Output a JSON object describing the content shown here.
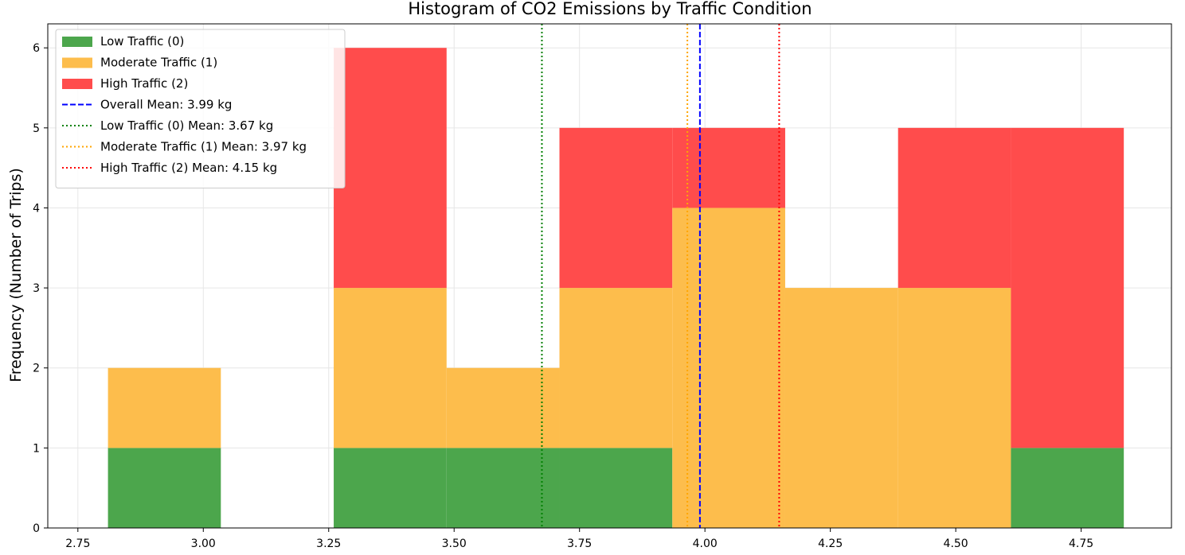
{
  "chart_data": {
    "type": "bar",
    "stacked": true,
    "title": "Histogram of CO2 Emissions by Traffic Condition",
    "xlabel": "",
    "ylabel": "Frequency (Number of Trips)",
    "xlim": [
      2.69,
      4.93
    ],
    "ylim": [
      0,
      6.3
    ],
    "xticks": [
      2.75,
      3.0,
      3.25,
      3.5,
      3.75,
      4.0,
      4.25,
      4.5,
      4.75
    ],
    "xtick_labels": [
      "2.75",
      "3.00",
      "3.25",
      "3.50",
      "3.75",
      "4.00",
      "4.25",
      "4.50",
      "4.75"
    ],
    "yticks": [
      0,
      1,
      2,
      3,
      4,
      5,
      6
    ],
    "ytick_labels": [
      "0",
      "1",
      "2",
      "3",
      "4",
      "5",
      "6"
    ],
    "grid": true,
    "legend_position": "top-left",
    "bin_edges": [
      2.81,
      3.035,
      3.26,
      3.485,
      3.71,
      3.935,
      4.16,
      4.385,
      4.61,
      4.835
    ],
    "series": [
      {
        "name": "Low Traffic (0)",
        "color": "#4ca64c",
        "values": [
          1,
          0,
          1,
          1,
          1,
          0,
          0,
          0,
          1
        ]
      },
      {
        "name": "Moderate Traffic (1)",
        "color": "#fdbd4c",
        "values": [
          1,
          0,
          2,
          1,
          2,
          4,
          3,
          3,
          0
        ]
      },
      {
        "name": "High Traffic (2)",
        "color": "#ff4c4c",
        "values": [
          0,
          0,
          3,
          0,
          2,
          1,
          0,
          2,
          4
        ]
      }
    ],
    "reference_lines": [
      {
        "name": "Overall Mean: 3.99 kg",
        "x": 3.99,
        "color": "#0000ff",
        "style": "dashed"
      },
      {
        "name": "Low Traffic (0) Mean: 3.67 kg",
        "x": 3.675,
        "color": "#008000",
        "style": "dotted"
      },
      {
        "name": "Moderate Traffic (1) Mean: 3.97 kg",
        "x": 3.965,
        "color": "#ffa500",
        "style": "dotted"
      },
      {
        "name": "High Traffic (2) Mean: 4.15 kg",
        "x": 4.148,
        "color": "#ff0000",
        "style": "dotted"
      }
    ]
  }
}
